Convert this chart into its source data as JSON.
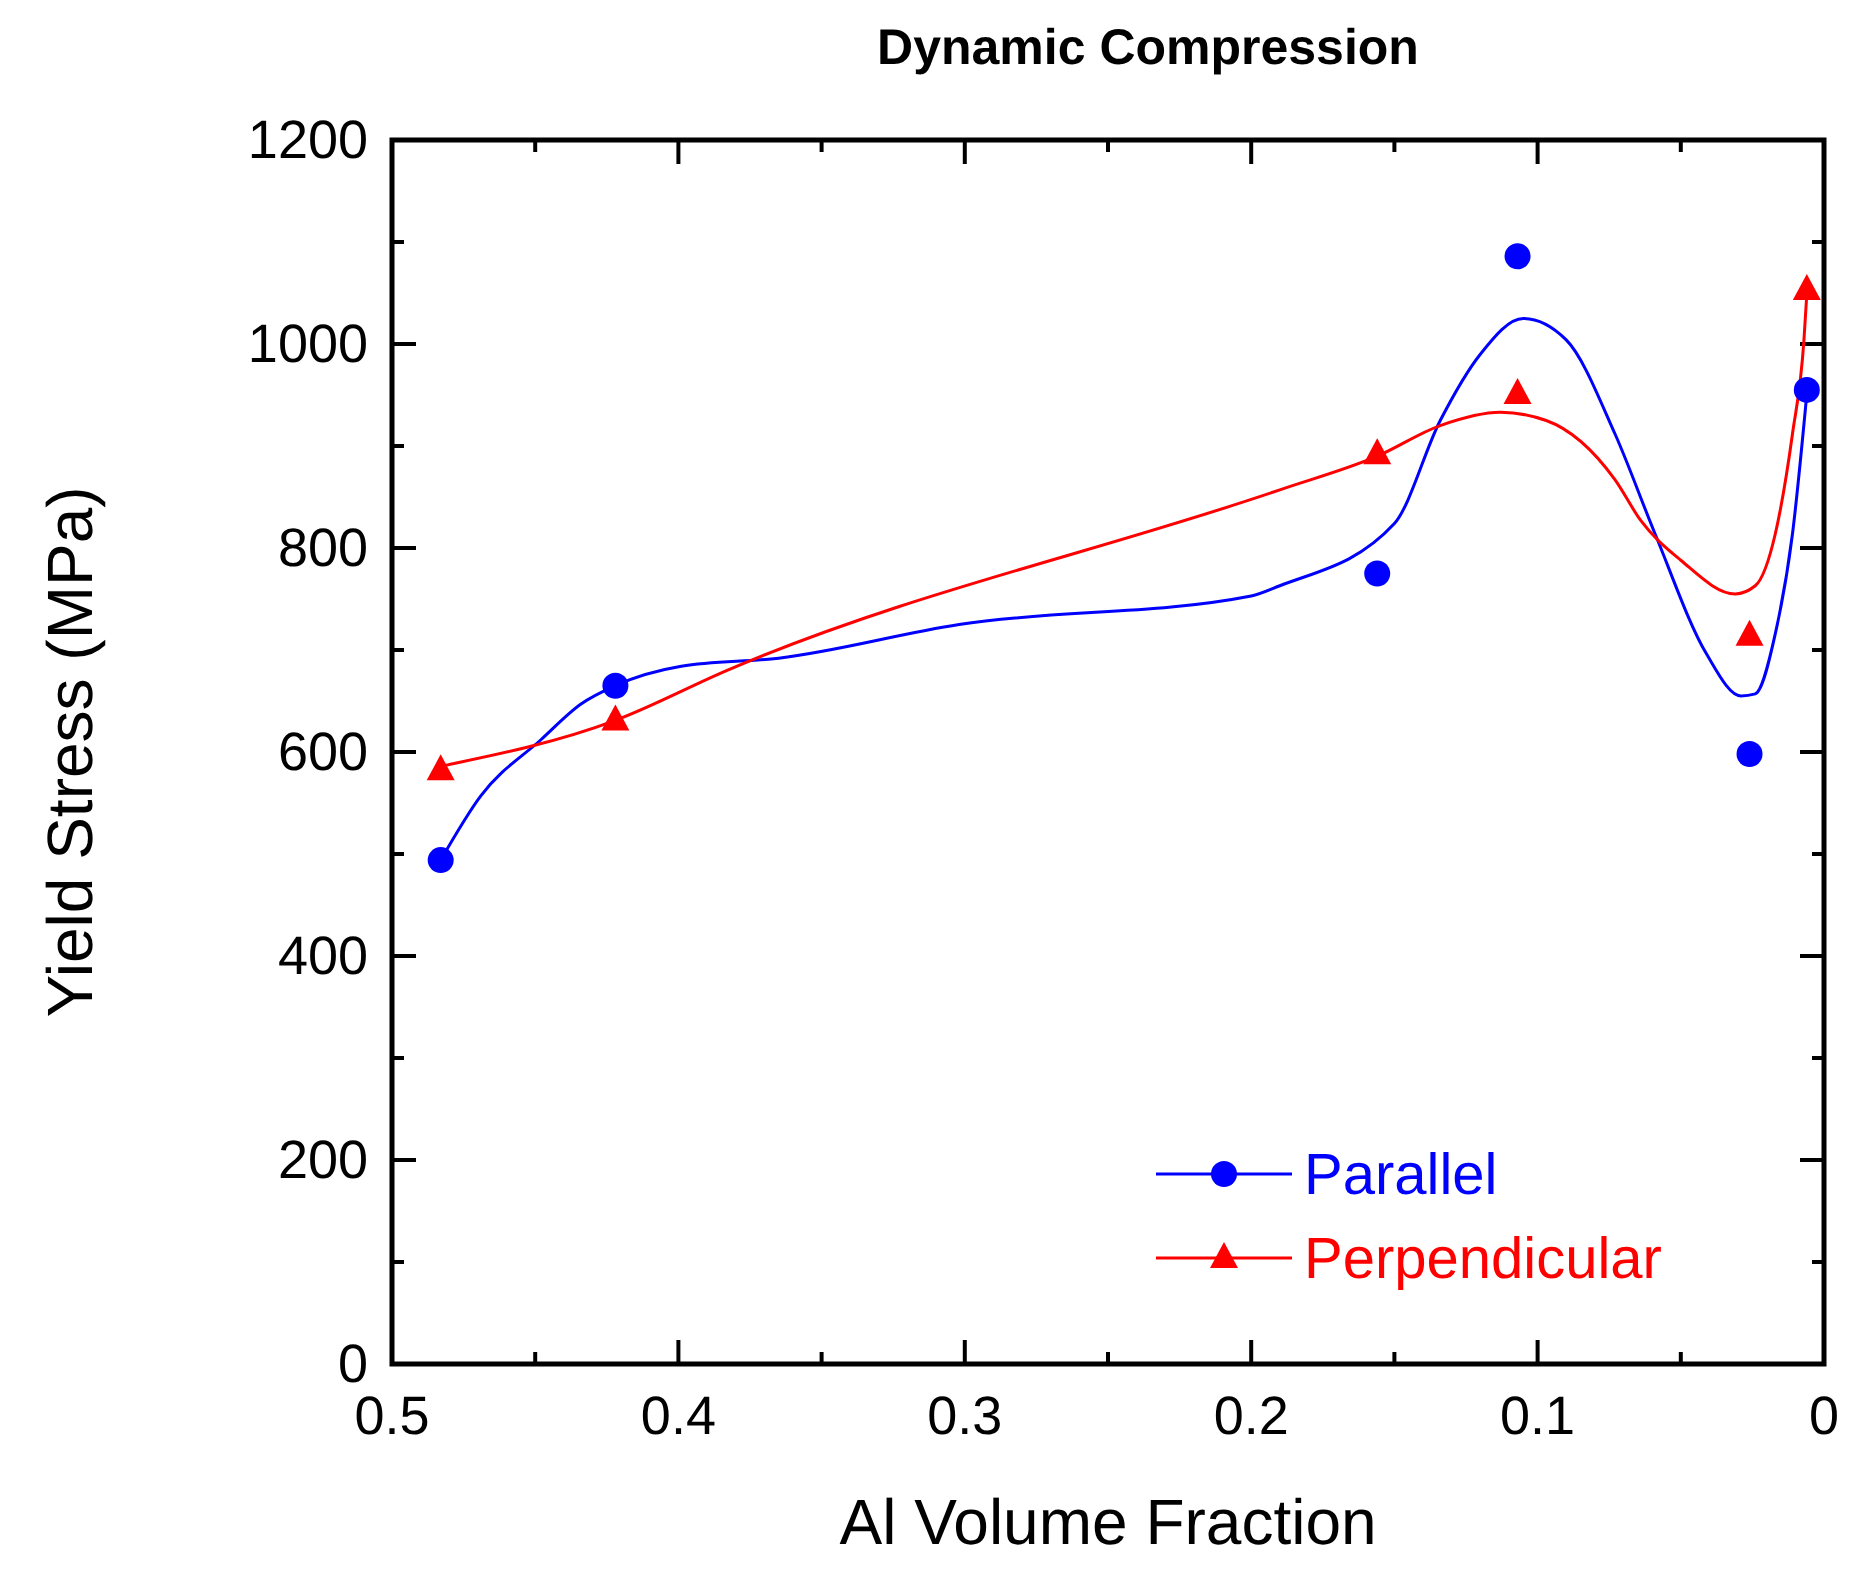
{
  "chart_data": {
    "type": "scatter",
    "title": "Dynamic Compression",
    "xlabel": "Al Volume Fraction",
    "ylabel": "Yield Stress (MPa)",
    "xlim": [
      0.5,
      0
    ],
    "ylim": [
      0,
      1200
    ],
    "xticks": [
      0.5,
      {
        "value": 0.45,
        "label": null
      },
      0.4,
      {
        "value": 0.35,
        "label": null
      },
      0.3,
      {
        "value": 0.25,
        "label": null
      },
      0.2,
      {
        "value": 0.15,
        "label": null
      },
      0.1,
      {
        "value": 0.05,
        "label": null
      },
      0
    ],
    "yticks": [
      0,
      {
        "value": 100,
        "label": null
      },
      200,
      {
        "value": 300,
        "label": null
      },
      400,
      {
        "value": 500,
        "label": null
      },
      600,
      {
        "value": 700,
        "label": null
      },
      800,
      {
        "value": 900,
        "label": null
      },
      1000,
      {
        "value": 1100,
        "label": null
      },
      1200
    ],
    "grid": false,
    "legend": "bottom right",
    "series": [
      {
        "type": "line",
        "color": "#0000ff",
        "marker": "none",
        "x": [
          0.483,
          0.469,
          0.448,
          0.434,
          0.422,
          0.399,
          0.365,
          0.302,
          0.2,
          0.19,
          0.15,
          0.134,
          0.12,
          0.105,
          0.09,
          0.073,
          0.059,
          0.041,
          0.029,
          0.024,
          0.017,
          0.011,
          0.006
        ],
        "values": [
          494,
          557,
          612,
          647,
          665,
          684,
          692,
          725,
          753,
          763,
          824,
          925,
          990,
          1025,
          1004,
          912,
          814,
          696,
          655,
          657,
          716,
          814,
          951
        ]
      },
      {
        "type": "line",
        "color": "#ff0000",
        "marker": "none",
        "x": [
          0.483,
          0.422,
          0.383,
          0.19,
          0.156,
          0.134,
          0.113,
          0.097,
          0.073,
          0.064,
          0.05,
          0.031,
          0.024,
          0.017,
          0.011,
          0.007,
          0.006
        ],
        "values": [
          586,
          631,
          680,
          857,
          890,
          920,
          933,
          925,
          867,
          827,
          788,
          755,
          763,
          814,
          912,
          1004,
          1049
        ]
      },
      {
        "type": "scatter",
        "name": "Parallel",
        "color": "#0000ff",
        "marker": "circle",
        "x": [
          0.483,
          0.422,
          0.156,
          0.107,
          0.026,
          0.006
        ],
        "values": [
          494,
          665,
          775,
          1086,
          598,
          955
        ]
      },
      {
        "type": "scatter",
        "name": "Perpendicular",
        "color": "#ff0000",
        "marker": "triangle",
        "x": [
          0.483,
          0.422,
          0.156,
          0.107,
          0.026,
          0.006
        ],
        "values": [
          582,
          631,
          892,
          951,
          714,
          1053
        ]
      }
    ]
  }
}
